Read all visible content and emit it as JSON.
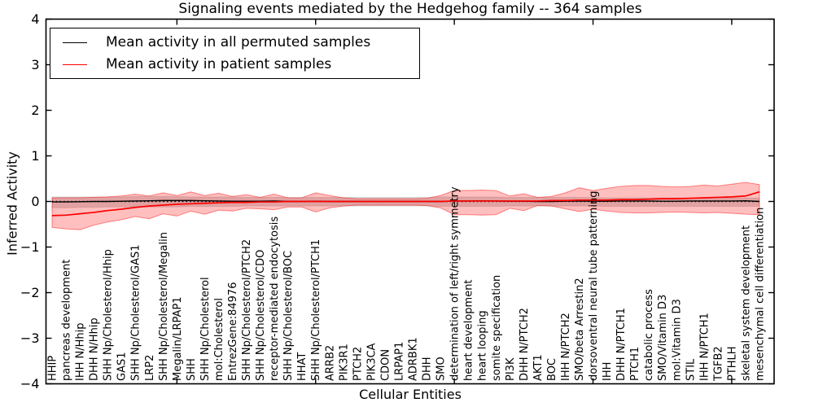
{
  "chart_data": {
    "type": "line",
    "title": "Signaling events mediated by the Hedgehog family -- 364 samples",
    "xlabel": "Cellular Entities",
    "ylabel": "Inferred Activity",
    "ylim": [
      -4,
      4
    ],
    "yticks": [
      -4,
      -3,
      -2,
      -1,
      0,
      1,
      2,
      3,
      4
    ],
    "ytick_labels": [
      "−4",
      "−3",
      "−2",
      "−1",
      "0",
      "1",
      "2",
      "3",
      "4"
    ],
    "xtick_values": [
      10,
      20,
      30,
      40,
      50
    ],
    "grid": false,
    "legend_position": "upper left",
    "zero_reference_line": {
      "y": 0,
      "style": "dotted",
      "color": "#000000"
    },
    "colors": {
      "permuted_line": "#000000",
      "patient_line": "#ff0000",
      "permuted_band": "rgba(0,0,0,0.15)",
      "patient_band": "rgba(255,0,0,0.25)",
      "patient_band_edge": "rgba(255,0,0,0.45)",
      "permuted_band_edge": "rgba(0,0,0,0.10)",
      "frame": "#000000"
    },
    "categories": [
      "HHIP",
      "pancreas development",
      "IHH N/Hhip",
      "DHH N/Hhip",
      "SHH Np/Cholesterol/Hhip",
      "GAS1",
      "SHH Np/Cholesterol/GAS1",
      "LRP2",
      "SHH Np/Cholesterol/Megalin",
      "Megalin/LRPAP1",
      "SHH",
      "SHH Np/Cholesterol",
      "mol:Cholesterol",
      "EntrezGene:84976",
      "SHH Np/Cholesterol/PTCH2",
      "SHH Np/Cholesterol/CDO",
      "receptor-mediated endocytosis",
      "SHH Np/Cholesterol/BOC",
      "HHAT",
      "SHH Np/Cholesterol/PTCH1",
      "ARRB2",
      "PIK3R1",
      "PTCH2",
      "PIK3CA",
      "CDON",
      "LRPAP1",
      "ADRBK1",
      "DHH",
      "SMO",
      "determination of left/right symmetry",
      "heart development",
      "heart looping",
      "somite specification",
      "PI3K",
      "DHH N/PTCH2",
      "AKT1",
      "BOC",
      "IHH N/PTCH2",
      "SMO/beta Arrestin2",
      "dorsoventral neural tube patterning",
      "IHH",
      "DHH N/PTCH1",
      "PTCH1",
      "catabolic process",
      "SMO/Vitamin D3",
      "mol:Vitamin D3",
      "STIL",
      "IHH N/PTCH1",
      "TGFB2",
      "PTHLH",
      "skeletal system development",
      "mesenchymal cell differentiation"
    ],
    "series": [
      {
        "name": "Mean activity in all permuted samples",
        "color": "#000000",
        "values": [
          -0.01,
          -0.01,
          -0.005,
          0,
          0,
          0.005,
          0.01,
          0.015,
          0.02,
          0.02,
          0.02,
          0.015,
          0.01,
          0.005,
          0.005,
          0.005,
          0.01,
          0,
          0,
          0.005,
          0,
          0,
          0,
          0,
          0,
          0,
          0,
          0,
          0,
          0.01,
          0.01,
          0.015,
          0.01,
          0.005,
          0.005,
          0,
          0,
          0.005,
          0.01,
          0.005,
          0.005,
          0.01,
          0.01,
          0.01,
          0.005,
          0.005,
          0.01,
          0.01,
          0.01,
          0.01,
          0.015,
          0
        ]
      },
      {
        "name": "Mean activity in patient samples",
        "color": "#ff0000",
        "values": [
          -0.31,
          -0.3,
          -0.27,
          -0.24,
          -0.2,
          -0.17,
          -0.13,
          -0.1,
          -0.08,
          -0.06,
          -0.05,
          -0.04,
          -0.03,
          -0.02,
          -0.02,
          -0.01,
          -0.01,
          0,
          0,
          0,
          0,
          0,
          0,
          0,
          0,
          0,
          0,
          0,
          0,
          0.01,
          0.01,
          0.01,
          0.01,
          0.01,
          0.01,
          0.01,
          0.02,
          0.02,
          0.03,
          0.03,
          0.03,
          0.04,
          0.04,
          0.05,
          0.06,
          0.06,
          0.07,
          0.08,
          0.09,
          0.1,
          0.12,
          0.21
        ]
      }
    ],
    "bands": [
      {
        "name": "permuted samples range",
        "color": "rgba(0,0,0,0.15)",
        "high": [
          0.1,
          0.1,
          0.1,
          0.1,
          0.1,
          0.1,
          0.11,
          0.11,
          0.11,
          0.11,
          0.1,
          0.1,
          0.1,
          0.1,
          0.09,
          0.09,
          0.09,
          0.09,
          0.09,
          0.09,
          0.09,
          0.09,
          0.09,
          0.09,
          0.09,
          0.09,
          0.09,
          0.09,
          0.1,
          0.1,
          0.1,
          0.1,
          0.1,
          0.09,
          0.09,
          0.09,
          0.09,
          0.09,
          0.09,
          0.09,
          0.08,
          0.08,
          0.08,
          0.08,
          0.08,
          0.08,
          0.08,
          0.08,
          0.08,
          0.08,
          0.08,
          0.08
        ],
        "low": [
          -0.14,
          -0.14,
          -0.13,
          -0.13,
          -0.12,
          -0.12,
          -0.12,
          -0.12,
          -0.12,
          -0.12,
          -0.11,
          -0.11,
          -0.11,
          -0.11,
          -0.1,
          -0.1,
          -0.1,
          -0.1,
          -0.1,
          -0.1,
          -0.1,
          -0.1,
          -0.1,
          -0.1,
          -0.1,
          -0.1,
          -0.1,
          -0.1,
          -0.11,
          -0.11,
          -0.11,
          -0.11,
          -0.11,
          -0.1,
          -0.1,
          -0.1,
          -0.1,
          -0.1,
          -0.1,
          -0.1,
          -0.11,
          -0.11,
          -0.11,
          -0.11,
          -0.11,
          -0.11,
          -0.11,
          -0.11,
          -0.11,
          -0.11,
          -0.11,
          -0.11
        ]
      },
      {
        "name": "patient samples range",
        "color": "rgba(255,0,0,0.25)",
        "high": [
          0.08,
          0.08,
          0.08,
          0.09,
          0.1,
          0.12,
          0.16,
          0.12,
          0.19,
          0.13,
          0.21,
          0.13,
          0.18,
          0.11,
          0.15,
          0.09,
          0.16,
          0.08,
          0.08,
          0.19,
          0.13,
          0.08,
          0.06,
          0.06,
          0.06,
          0.06,
          0.06,
          0.07,
          0.13,
          0.24,
          0.24,
          0.25,
          0.24,
          0.12,
          0.17,
          0.09,
          0.11,
          0.19,
          0.3,
          0.24,
          0.29,
          0.33,
          0.35,
          0.35,
          0.33,
          0.32,
          0.33,
          0.36,
          0.34,
          0.38,
          0.42,
          0.37
        ],
        "low": [
          -0.57,
          -0.6,
          -0.62,
          -0.52,
          -0.45,
          -0.4,
          -0.33,
          -0.38,
          -0.27,
          -0.32,
          -0.21,
          -0.28,
          -0.19,
          -0.21,
          -0.15,
          -0.16,
          -0.18,
          -0.12,
          -0.12,
          -0.23,
          -0.14,
          -0.1,
          -0.08,
          -0.08,
          -0.08,
          -0.08,
          -0.08,
          -0.09,
          -0.14,
          -0.29,
          -0.29,
          -0.3,
          -0.29,
          -0.15,
          -0.2,
          -0.09,
          -0.1,
          -0.16,
          -0.22,
          -0.17,
          -0.21,
          -0.24,
          -0.25,
          -0.25,
          -0.24,
          -0.23,
          -0.24,
          -0.25,
          -0.24,
          -0.26,
          -0.28,
          -0.29
        ]
      }
    ],
    "legend": [
      {
        "label": "Mean activity in all permuted samples",
        "color": "#000000"
      },
      {
        "label": "Mean activity in patient samples",
        "color": "#ff0000"
      }
    ]
  }
}
